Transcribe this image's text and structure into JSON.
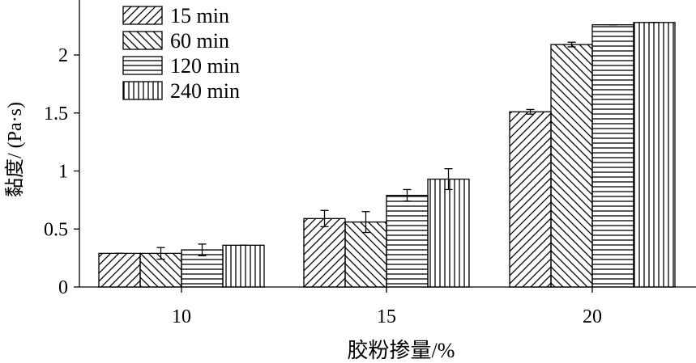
{
  "chart_data": {
    "type": "bar",
    "xlabel": "胶粉掺量/%",
    "ylabel": "黏度/ (Pa·s)",
    "categories": [
      "10",
      "15",
      "20"
    ],
    "ylim": [
      0,
      2.4
    ],
    "yticks": [
      0,
      0.5,
      1,
      1.5,
      2
    ],
    "ytick_labels": [
      "0",
      "0.5",
      "1",
      "1.5",
      "2"
    ],
    "grid": false,
    "legend_position": "top-left",
    "colors": {
      "bar_fill": "#ffffff",
      "bar_stroke": "#000000",
      "hatch": "#000000"
    },
    "series": [
      {
        "name": "15 min",
        "pattern": "diagonal-up",
        "values": [
          0.29,
          0.59,
          1.51
        ],
        "errors": [
          0.0,
          0.07,
          0.02
        ]
      },
      {
        "name": "60 min",
        "pattern": "diagonal-down",
        "values": [
          0.29,
          0.56,
          2.09
        ],
        "errors": [
          0.05,
          0.09,
          0.02
        ]
      },
      {
        "name": "120 min",
        "pattern": "horizontal",
        "values": [
          0.32,
          0.79,
          2.26
        ],
        "errors": [
          0.05,
          0.05,
          0.0
        ]
      },
      {
        "name": "240 min",
        "pattern": "vertical",
        "values": [
          0.36,
          0.93,
          2.28
        ],
        "errors": [
          0.0,
          0.09,
          0.0
        ]
      }
    ]
  }
}
